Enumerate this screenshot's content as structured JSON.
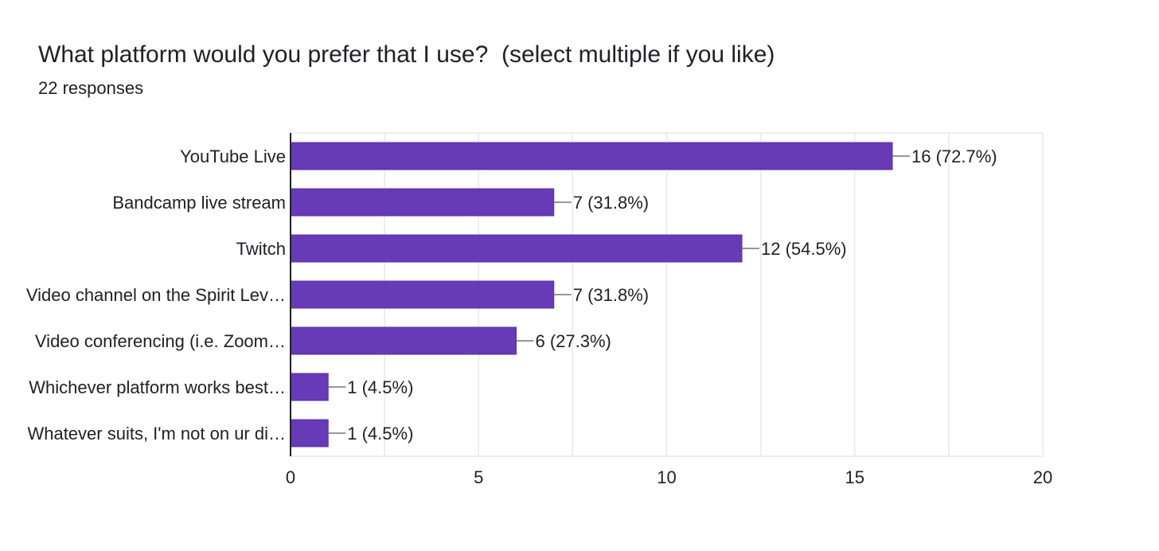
{
  "header": {
    "title": "What platform would you prefer that I use?  (select multiple if you like)",
    "subtitle": "22 responses"
  },
  "colors": {
    "bar": "#673ab7",
    "grid": "#e8e8e8",
    "axis": "#202124",
    "leader": "#757575"
  },
  "chart_data": {
    "type": "bar",
    "orientation": "horizontal",
    "title": "What platform would you prefer that I use?  (select multiple if you like)",
    "subtitle": "22 responses",
    "categories": [
      "YouTube Live",
      "Bandcamp live stream",
      "Twitch",
      "Video channel on the Spirit Lev…",
      "Video conferencing (i.e. Zoom…",
      "Whichever platform works best…",
      "Whatever suits, I'm not on ur di…"
    ],
    "values": [
      16,
      7,
      12,
      7,
      6,
      1,
      1
    ],
    "data_labels": [
      "16 (72.7%)",
      "7 (31.8%)",
      "12 (54.5%)",
      "7 (31.8%)",
      "6 (27.3%)",
      "1 (4.5%)",
      "1 (4.5%)"
    ],
    "xlim": [
      0,
      20
    ],
    "xticks": [
      0,
      5,
      10,
      15,
      20
    ],
    "xlabel": "",
    "ylabel": "",
    "grid": true,
    "legend": "none"
  }
}
